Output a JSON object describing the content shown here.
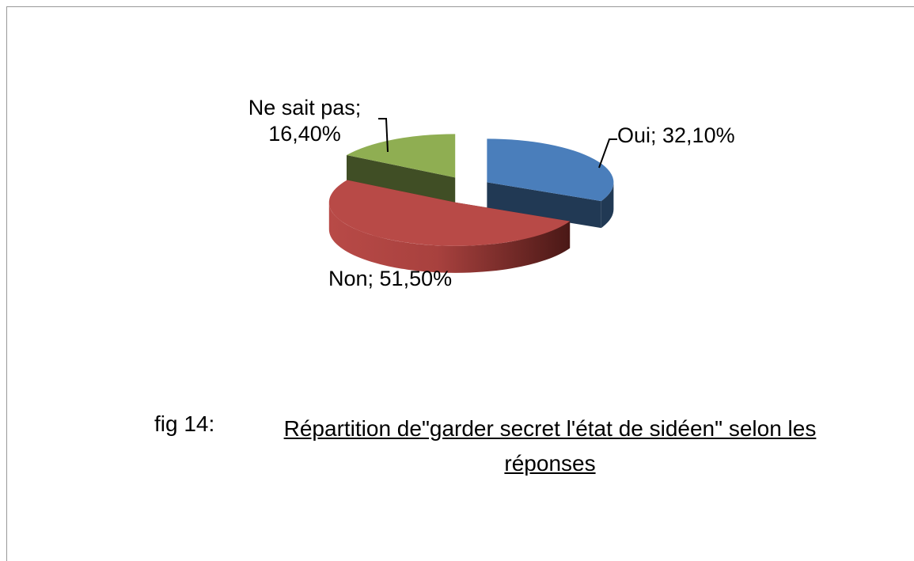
{
  "chart_data": {
    "type": "pie3d",
    "figure_label": "fig 14:",
    "title": "Répartition de\"garder secret l'état de sidéen\" selon les réponses",
    "values": [
      32.1,
      51.5,
      16.4
    ],
    "value_labels": [
      "Oui; 32,10%",
      "Non; 51,50%",
      "Ne sait pas; 16,40%"
    ],
    "colors": [
      "#4a7ebb",
      "#b84a47",
      "#8fae52"
    ]
  }
}
